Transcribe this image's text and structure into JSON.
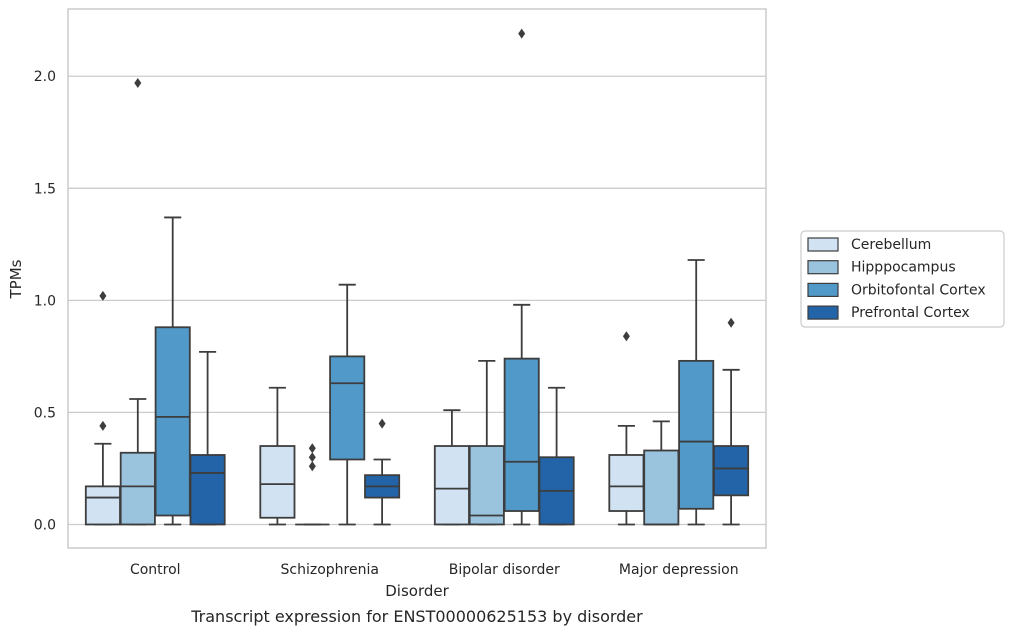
{
  "chart_data": {
    "type": "boxplot",
    "title": "",
    "caption": "Transcript expression for ENST00000625153 by disorder",
    "xlabel": "Disorder",
    "ylabel": "TPMs",
    "ylim": [
      -0.105,
      2.3
    ],
    "yticks": [
      0.0,
      0.5,
      1.0,
      1.5,
      2.0
    ],
    "ytick_labels": [
      "0.0",
      "0.5",
      "1.0",
      "1.5",
      "2.0"
    ],
    "grid": "horizontal",
    "legend_position": "right",
    "categories": [
      "Control",
      "Schizophrenia",
      "Bipolar disorder",
      "Major depression"
    ],
    "series": [
      {
        "name": "Cerebellum",
        "color": "#d1e2f2",
        "boxes": [
          {
            "whisker_low": 0.0,
            "q1": 0.0,
            "median": 0.12,
            "q3": 0.17,
            "whisker_high": 0.36,
            "outliers": [
              0.44,
              1.02
            ]
          },
          {
            "whisker_low": 0.0,
            "q1": 0.03,
            "median": 0.18,
            "q3": 0.35,
            "whisker_high": 0.61,
            "outliers": []
          },
          {
            "whisker_low": 0.0,
            "q1": 0.0,
            "median": 0.16,
            "q3": 0.35,
            "whisker_high": 0.51,
            "outliers": []
          },
          {
            "whisker_low": 0.0,
            "q1": 0.06,
            "median": 0.17,
            "q3": 0.31,
            "whisker_high": 0.44,
            "outliers": [
              0.84
            ]
          }
        ]
      },
      {
        "name": "Hipppocampus",
        "color": "#9ac3de",
        "boxes": [
          {
            "whisker_low": 0.0,
            "q1": 0.0,
            "median": 0.17,
            "q3": 0.32,
            "whisker_high": 0.56,
            "outliers": [
              1.97
            ]
          },
          {
            "whisker_low": 0.0,
            "q1": 0.0,
            "median": 0.0,
            "q3": 0.0,
            "whisker_high": 0.0,
            "outliers": [
              0.26,
              0.3,
              0.34
            ]
          },
          {
            "whisker_low": 0.0,
            "q1": 0.0,
            "median": 0.04,
            "q3": 0.35,
            "whisker_high": 0.73,
            "outliers": []
          },
          {
            "whisker_low": 0.0,
            "q1": 0.0,
            "median": 0.0,
            "q3": 0.33,
            "whisker_high": 0.46,
            "outliers": []
          }
        ]
      },
      {
        "name": "Orbitofontal Cortex",
        "color": "#5199c8",
        "boxes": [
          {
            "whisker_low": 0.0,
            "q1": 0.04,
            "median": 0.48,
            "q3": 0.88,
            "whisker_high": 1.37,
            "outliers": []
          },
          {
            "whisker_low": 0.0,
            "q1": 0.29,
            "median": 0.63,
            "q3": 0.75,
            "whisker_high": 1.07,
            "outliers": []
          },
          {
            "whisker_low": 0.0,
            "q1": 0.06,
            "median": 0.28,
            "q3": 0.74,
            "whisker_high": 0.98,
            "outliers": [
              2.19
            ]
          },
          {
            "whisker_low": 0.0,
            "q1": 0.07,
            "median": 0.37,
            "q3": 0.73,
            "whisker_high": 1.18,
            "outliers": []
          }
        ]
      },
      {
        "name": "Prefrontal Cortex",
        "color": "#2364a8",
        "boxes": [
          {
            "whisker_low": 0.0,
            "q1": 0.0,
            "median": 0.23,
            "q3": 0.31,
            "whisker_high": 0.77,
            "outliers": []
          },
          {
            "whisker_low": 0.0,
            "q1": 0.12,
            "median": 0.17,
            "q3": 0.22,
            "whisker_high": 0.29,
            "outliers": [
              0.45
            ]
          },
          {
            "whisker_low": 0.0,
            "q1": 0.0,
            "median": 0.15,
            "q3": 0.3,
            "whisker_high": 0.61,
            "outliers": []
          },
          {
            "whisker_low": 0.0,
            "q1": 0.13,
            "median": 0.25,
            "q3": 0.35,
            "whisker_high": 0.69,
            "outliers": [
              0.9
            ]
          }
        ]
      }
    ]
  }
}
